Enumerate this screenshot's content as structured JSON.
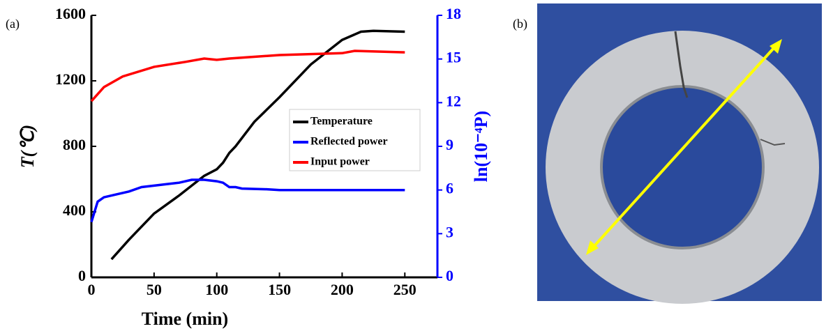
{
  "panel_labels": [
    "(a)",
    "(b)"
  ],
  "chart_data": {
    "type": "line",
    "xlabel": "Time (min)",
    "ylabel": "T(℃)",
    "y2label": "ln(10⁻⁴P)",
    "xlim": [
      0,
      276
    ],
    "xticks": [
      0,
      50,
      100,
      150,
      200,
      250
    ],
    "ylim": [
      0,
      1600
    ],
    "yticks": [
      0,
      400,
      800,
      1200,
      1600
    ],
    "y2lim": [
      0,
      18
    ],
    "y2ticks": [
      0,
      3,
      6,
      9,
      12,
      15,
      18
    ],
    "legend": "upper right",
    "series": [
      {
        "name": "Temperature",
        "color": "#000000",
        "x": [
          16,
          30,
          50,
          70,
          90,
          100,
          105,
          110,
          115,
          130,
          150,
          175,
          200,
          215,
          225,
          250
        ],
        "values": [
          110,
          230,
          390,
          500,
          620,
          660,
          700,
          760,
          800,
          950,
          1100,
          1300,
          1450,
          1500,
          1505,
          1500
        ]
      },
      {
        "name": "Reflected power",
        "color": "#0000ff",
        "axis": "y2",
        "x": [
          0,
          5,
          10,
          20,
          30,
          40,
          50,
          60,
          70,
          80,
          90,
          100,
          105,
          110,
          115,
          120,
          140,
          150,
          200,
          250
        ],
        "values": [
          3.8,
          5.2,
          5.5,
          5.7,
          5.9,
          6.2,
          6.3,
          6.4,
          6.5,
          6.7,
          6.7,
          6.6,
          6.5,
          6.2,
          6.2,
          6.1,
          6.05,
          6.0,
          6.0,
          6.0
        ]
      },
      {
        "name": "Input power",
        "color": "#ff0000",
        "axis": "y2",
        "x": [
          0,
          10,
          25,
          50,
          75,
          90,
          100,
          110,
          150,
          200,
          210,
          250
        ],
        "values": [
          12.1,
          13.07,
          13.8,
          14.46,
          14.8,
          15.03,
          14.94,
          15.03,
          15.27,
          15.4,
          15.56,
          15.46
        ]
      }
    ]
  }
}
